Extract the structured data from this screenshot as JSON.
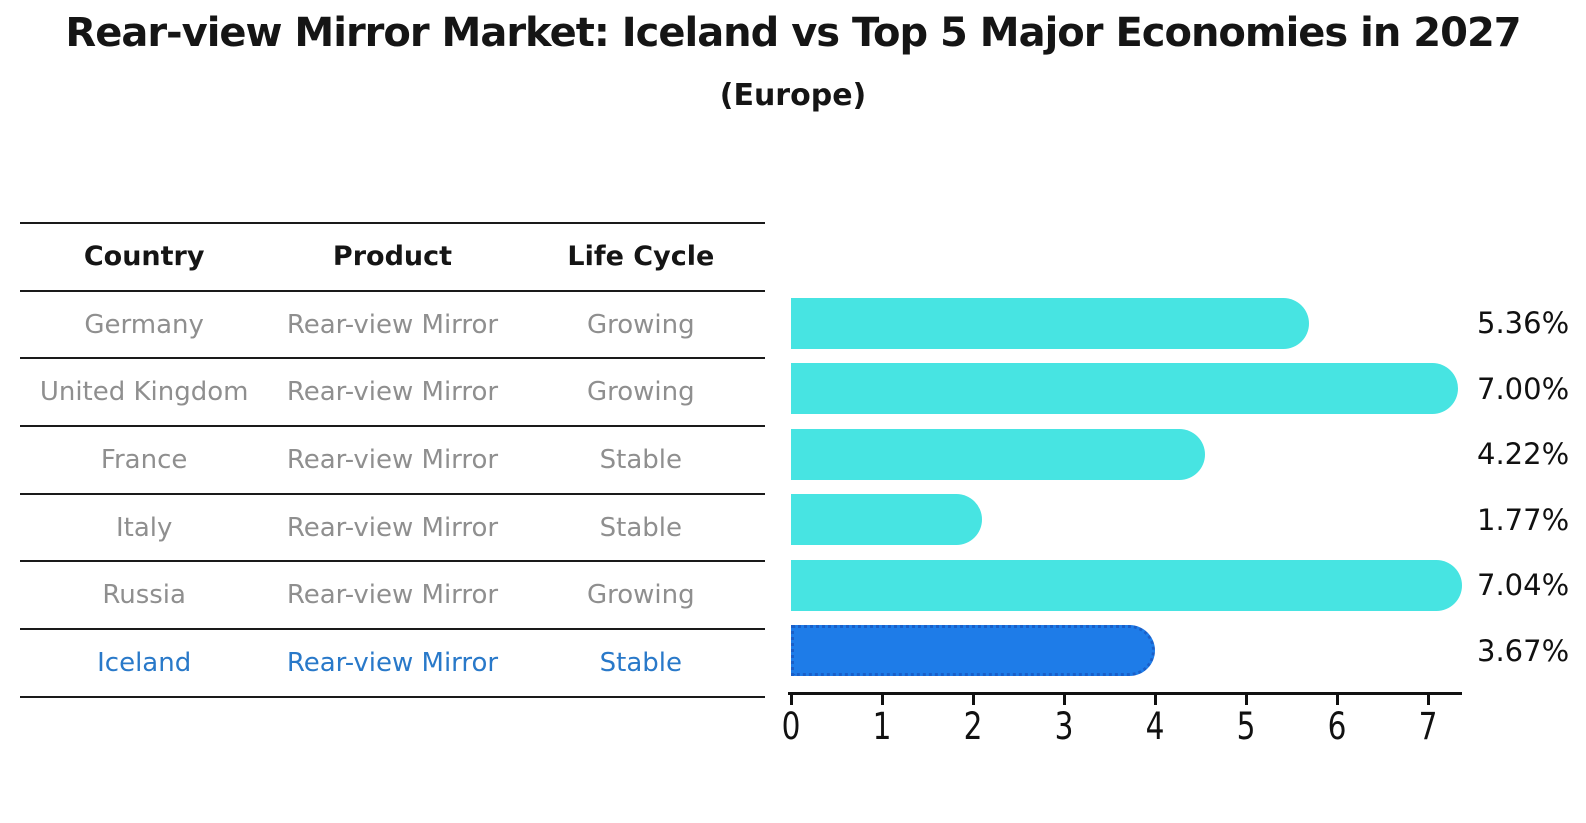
{
  "chart": {
    "title": "Rear-view Mirror Market: Iceland vs Top 5 Major Economies in 2027",
    "subtitle": "(Europe)"
  },
  "table": {
    "headers": [
      "Country",
      "Product",
      "Life Cycle"
    ],
    "rows": [
      {
        "country": "Germany",
        "product": "Rear-view Mirror",
        "life_cycle": "Growing",
        "highlight": false
      },
      {
        "country": "United Kingdom",
        "product": "Rear-view Mirror",
        "life_cycle": "Growing",
        "highlight": false
      },
      {
        "country": "France",
        "product": "Rear-view Mirror",
        "life_cycle": "Stable",
        "highlight": false
      },
      {
        "country": "Italy",
        "product": "Rear-view Mirror",
        "life_cycle": "Stable",
        "highlight": false
      },
      {
        "country": "Russia",
        "product": "Rear-view Mirror",
        "life_cycle": "Growing",
        "highlight": false
      },
      {
        "country": "Iceland",
        "product": "Rear-view Mirror",
        "life_cycle": "Stable",
        "highlight": true
      }
    ]
  },
  "chart_data": {
    "type": "bar",
    "orientation": "horizontal",
    "title": "Rear-view Mirror Market: Iceland vs Top 5 Major Economies in 2027 (Europe)",
    "categories": [
      "Germany",
      "United Kingdom",
      "France",
      "Italy",
      "Russia",
      "Iceland"
    ],
    "values": [
      5.36,
      7.0,
      4.22,
      1.77,
      7.04,
      3.67
    ],
    "value_labels": [
      "5.36%",
      "7.00%",
      "4.22%",
      "1.77%",
      "7.04%",
      "3.67%"
    ],
    "x_ticks": [
      "0",
      "1",
      "2",
      "3",
      "4",
      "5",
      "6",
      "7"
    ],
    "xlim": [
      0,
      7.4
    ],
    "xlabel": "",
    "ylabel": "",
    "grid": false,
    "legend": false,
    "highlight_index": 5,
    "bar_color": "#47E4E2",
    "highlight_bar_color": "#1E7CE8",
    "highlight_border_color": "#1A5FC8",
    "highlight_text_color": "#2979C9",
    "row_text_color": "#8f8f8f",
    "axis_color": "#111111"
  }
}
